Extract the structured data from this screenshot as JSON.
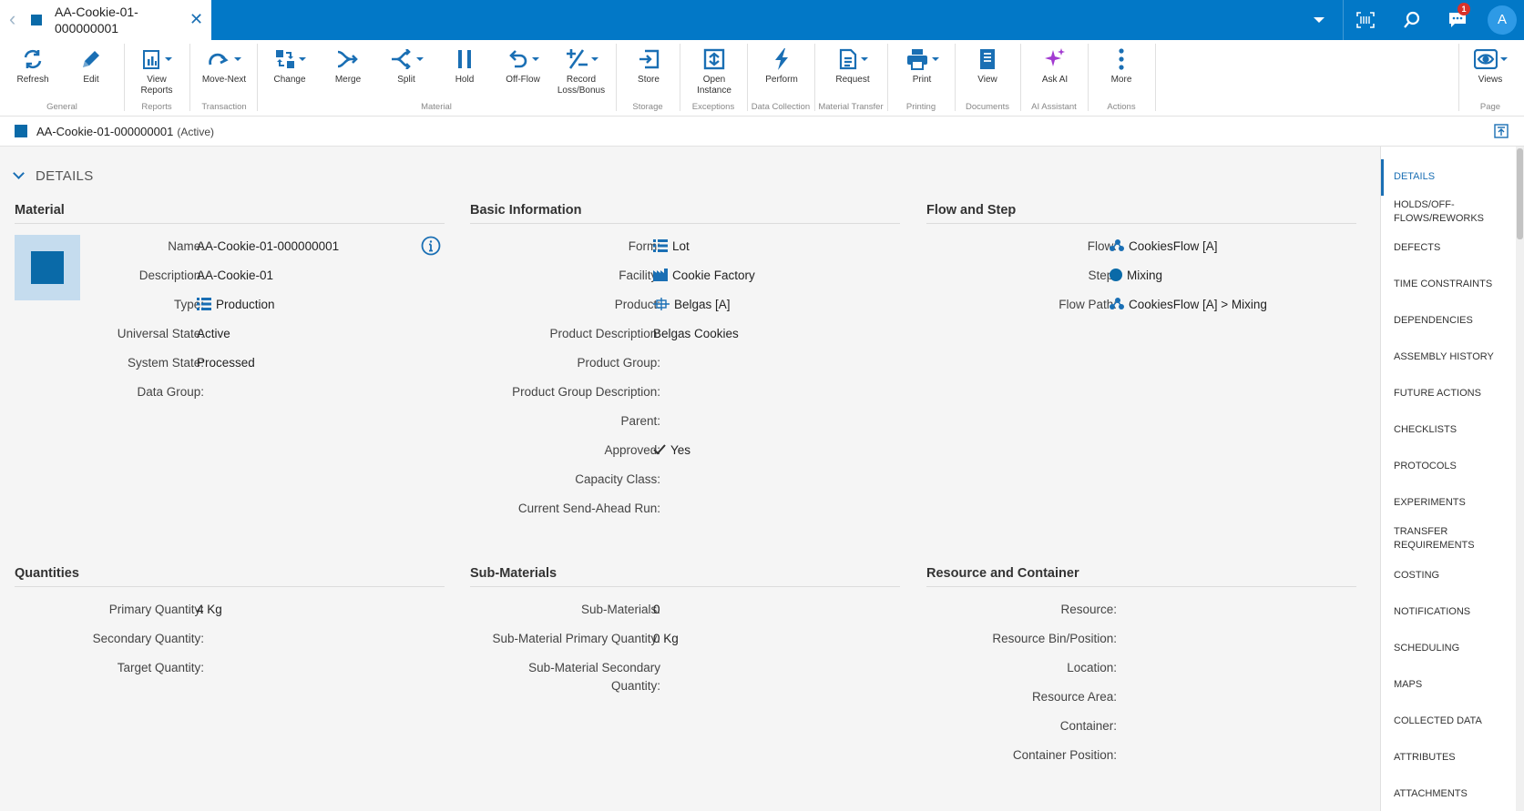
{
  "tab": {
    "title": "AA-Cookie-01-000000001"
  },
  "topbar": {
    "notification_count": "1",
    "avatar_initial": "A"
  },
  "ribbon": {
    "buttons": [
      {
        "label": "Refresh",
        "icon": "refresh-icon"
      },
      {
        "label": "Edit",
        "icon": "pencil-icon"
      },
      {
        "label": "View\nReports",
        "icon": "report-icon"
      },
      {
        "label": "Move-Next",
        "icon": "redo-arrow-icon"
      },
      {
        "label": "Change",
        "icon": "change-icon"
      },
      {
        "label": "Merge",
        "icon": "merge-icon"
      },
      {
        "label": "Split",
        "icon": "split-icon"
      },
      {
        "label": "Hold",
        "icon": "pause-icon"
      },
      {
        "label": "Off-Flow",
        "icon": "undo-arrow-icon"
      },
      {
        "label": "Record\nLoss/Bonus",
        "icon": "plus-minus-icon"
      },
      {
        "label": "Store",
        "icon": "store-icon"
      },
      {
        "label": "Open\nInstance",
        "icon": "instance-icon"
      },
      {
        "label": "Perform",
        "icon": "lightning-icon"
      },
      {
        "label": "Request",
        "icon": "document-icon"
      },
      {
        "label": "Print",
        "icon": "printer-icon"
      },
      {
        "label": "View",
        "icon": "book-icon"
      },
      {
        "label": "Ask AI",
        "icon": "sparkle-icon"
      },
      {
        "label": "More",
        "icon": "more-icon"
      },
      {
        "label": "Views",
        "icon": "eye-icon"
      }
    ],
    "groups": [
      "General",
      "Reports",
      "Transaction",
      "Material",
      "Storage",
      "Exceptions",
      "Data Collection",
      "Material Transfer",
      "Printing",
      "Documents",
      "AI Assistant",
      "Actions",
      "Page"
    ]
  },
  "header": {
    "title": "AA-Cookie-01-000000001",
    "state": "(Active)"
  },
  "details_label": "DETAILS",
  "material": {
    "title": "Material",
    "fields": [
      {
        "label": "Name:",
        "value": "AA-Cookie-01-000000001"
      },
      {
        "label": "Description:",
        "value": "AA-Cookie-01"
      },
      {
        "label": "Type:",
        "value": "Production"
      },
      {
        "label": "Universal State:",
        "value": "Active"
      },
      {
        "label": "System State:",
        "value": "Processed"
      },
      {
        "label": "Data Group:",
        "value": ""
      }
    ]
  },
  "basic_info": {
    "title": "Basic Information",
    "fields": [
      {
        "label": "Form:",
        "value": "Lot"
      },
      {
        "label": "Facility:",
        "value": "Cookie Factory"
      },
      {
        "label": "Product:",
        "value": "Belgas [A]"
      },
      {
        "label": "Product Description:",
        "value": "Belgas Cookies"
      },
      {
        "label": "Product Group:",
        "value": ""
      },
      {
        "label": "Product Group Description:",
        "value": ""
      },
      {
        "label": "Parent:",
        "value": ""
      },
      {
        "label": "Approved:",
        "value": "Yes"
      },
      {
        "label": "Capacity Class:",
        "value": ""
      },
      {
        "label": "Current Send-Ahead Run:",
        "value": ""
      }
    ]
  },
  "flow_step": {
    "title": "Flow and Step",
    "fields": [
      {
        "label": "Flow:",
        "value": "CookiesFlow [A]"
      },
      {
        "label": "Step:",
        "value": "Mixing"
      },
      {
        "label": "Flow Path:",
        "value": "CookiesFlow [A] > Mixing"
      }
    ]
  },
  "quantities": {
    "title": "Quantities",
    "fields": [
      {
        "label": "Primary Quantity:",
        "value": "4 Kg"
      },
      {
        "label": "Secondary Quantity:",
        "value": ""
      },
      {
        "label": "Target Quantity:",
        "value": ""
      }
    ]
  },
  "sub_materials": {
    "title": "Sub-Materials",
    "fields": [
      {
        "label": "Sub-Materials:",
        "value": "0"
      },
      {
        "label": "Sub-Material Primary Quantity:",
        "value": "0 Kg"
      },
      {
        "label": "Sub-Material Secondary",
        "label2": "Quantity:",
        "value": ""
      }
    ]
  },
  "resource_container": {
    "title": "Resource and Container",
    "fields": [
      {
        "label": "Resource:",
        "value": ""
      },
      {
        "label": "Resource Bin/Position:",
        "value": ""
      },
      {
        "label": "Location:",
        "value": ""
      },
      {
        "label": "Resource Area:",
        "value": ""
      },
      {
        "label": "Container:",
        "value": ""
      },
      {
        "label": "Container Position:",
        "value": ""
      }
    ]
  },
  "right_nav": {
    "items": [
      "DETAILS",
      "HOLDS/OFF-\nFLOWS/REWORKS",
      "DEFECTS",
      "TIME CONSTRAINTS",
      "DEPENDENCIES",
      "ASSEMBLY HISTORY",
      "FUTURE ACTIONS",
      "CHECKLISTS",
      "PROTOCOLS",
      "EXPERIMENTS",
      "TRANSFER\nREQUIREMENTS",
      "COSTING",
      "NOTIFICATIONS",
      "SCHEDULING",
      "MAPS",
      "COLLECTED DATA",
      "ATTRIBUTES",
      "ATTACHMENTS"
    ]
  },
  "colors": {
    "brand": "#0278c7",
    "link": "#1a6fb4",
    "badge": "#d9322b",
    "material_square": "#0a6aa8"
  }
}
